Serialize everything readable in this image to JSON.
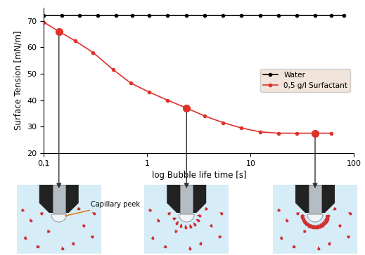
{
  "chart_data": {
    "type": "line",
    "x_label": "log Bubble life time [s]",
    "y_label": "Surface Tension [mN/m]",
    "log": "x",
    "xlim": [
      0.1,
      100
    ],
    "ylim": [
      20,
      75
    ],
    "xticks": [
      {
        "value": 0.1,
        "label": "0,1"
      },
      1,
      10,
      100
    ],
    "yticks": [
      20,
      30,
      40,
      50,
      60,
      70
    ],
    "grid": false,
    "legend": "center right",
    "series": [
      {
        "name": "Water",
        "color": "#000000",
        "marker": "o",
        "line_style": "solid",
        "x": [
          0.1,
          0.15,
          0.22,
          0.33,
          0.5,
          0.72,
          1.05,
          1.57,
          2.4,
          3.6,
          5.4,
          8.1,
          12.3,
          18.5,
          28,
          42,
          60,
          80
        ],
        "values": [
          72,
          72,
          72,
          72,
          72,
          72,
          72,
          72,
          72,
          72,
          72,
          72,
          72,
          72,
          72,
          72,
          72,
          72
        ]
      },
      {
        "name": "0,5 g/l Surfactant",
        "color": "#e0302a",
        "marker": "o",
        "line_style": "solid",
        "x": [
          0.1,
          0.14,
          0.2,
          0.3,
          0.47,
          0.69,
          1.05,
          1.57,
          2.4,
          3.6,
          5.4,
          8.1,
          12.3,
          18.5,
          28,
          42,
          60
        ],
        "values": [
          69.5,
          66,
          62.5,
          58,
          51.5,
          46.5,
          43,
          40,
          37,
          34,
          31.5,
          29.5,
          28,
          27.5,
          27.5,
          27.5,
          27.5
        ]
      }
    ],
    "highlighted": [
      {
        "x": 0.14,
        "y": 66
      },
      {
        "x": 2.4,
        "y": 37
      },
      {
        "x": 42,
        "y": 27.5
      }
    ],
    "annotations": [
      {
        "text": "Capillary peek"
      }
    ]
  }
}
